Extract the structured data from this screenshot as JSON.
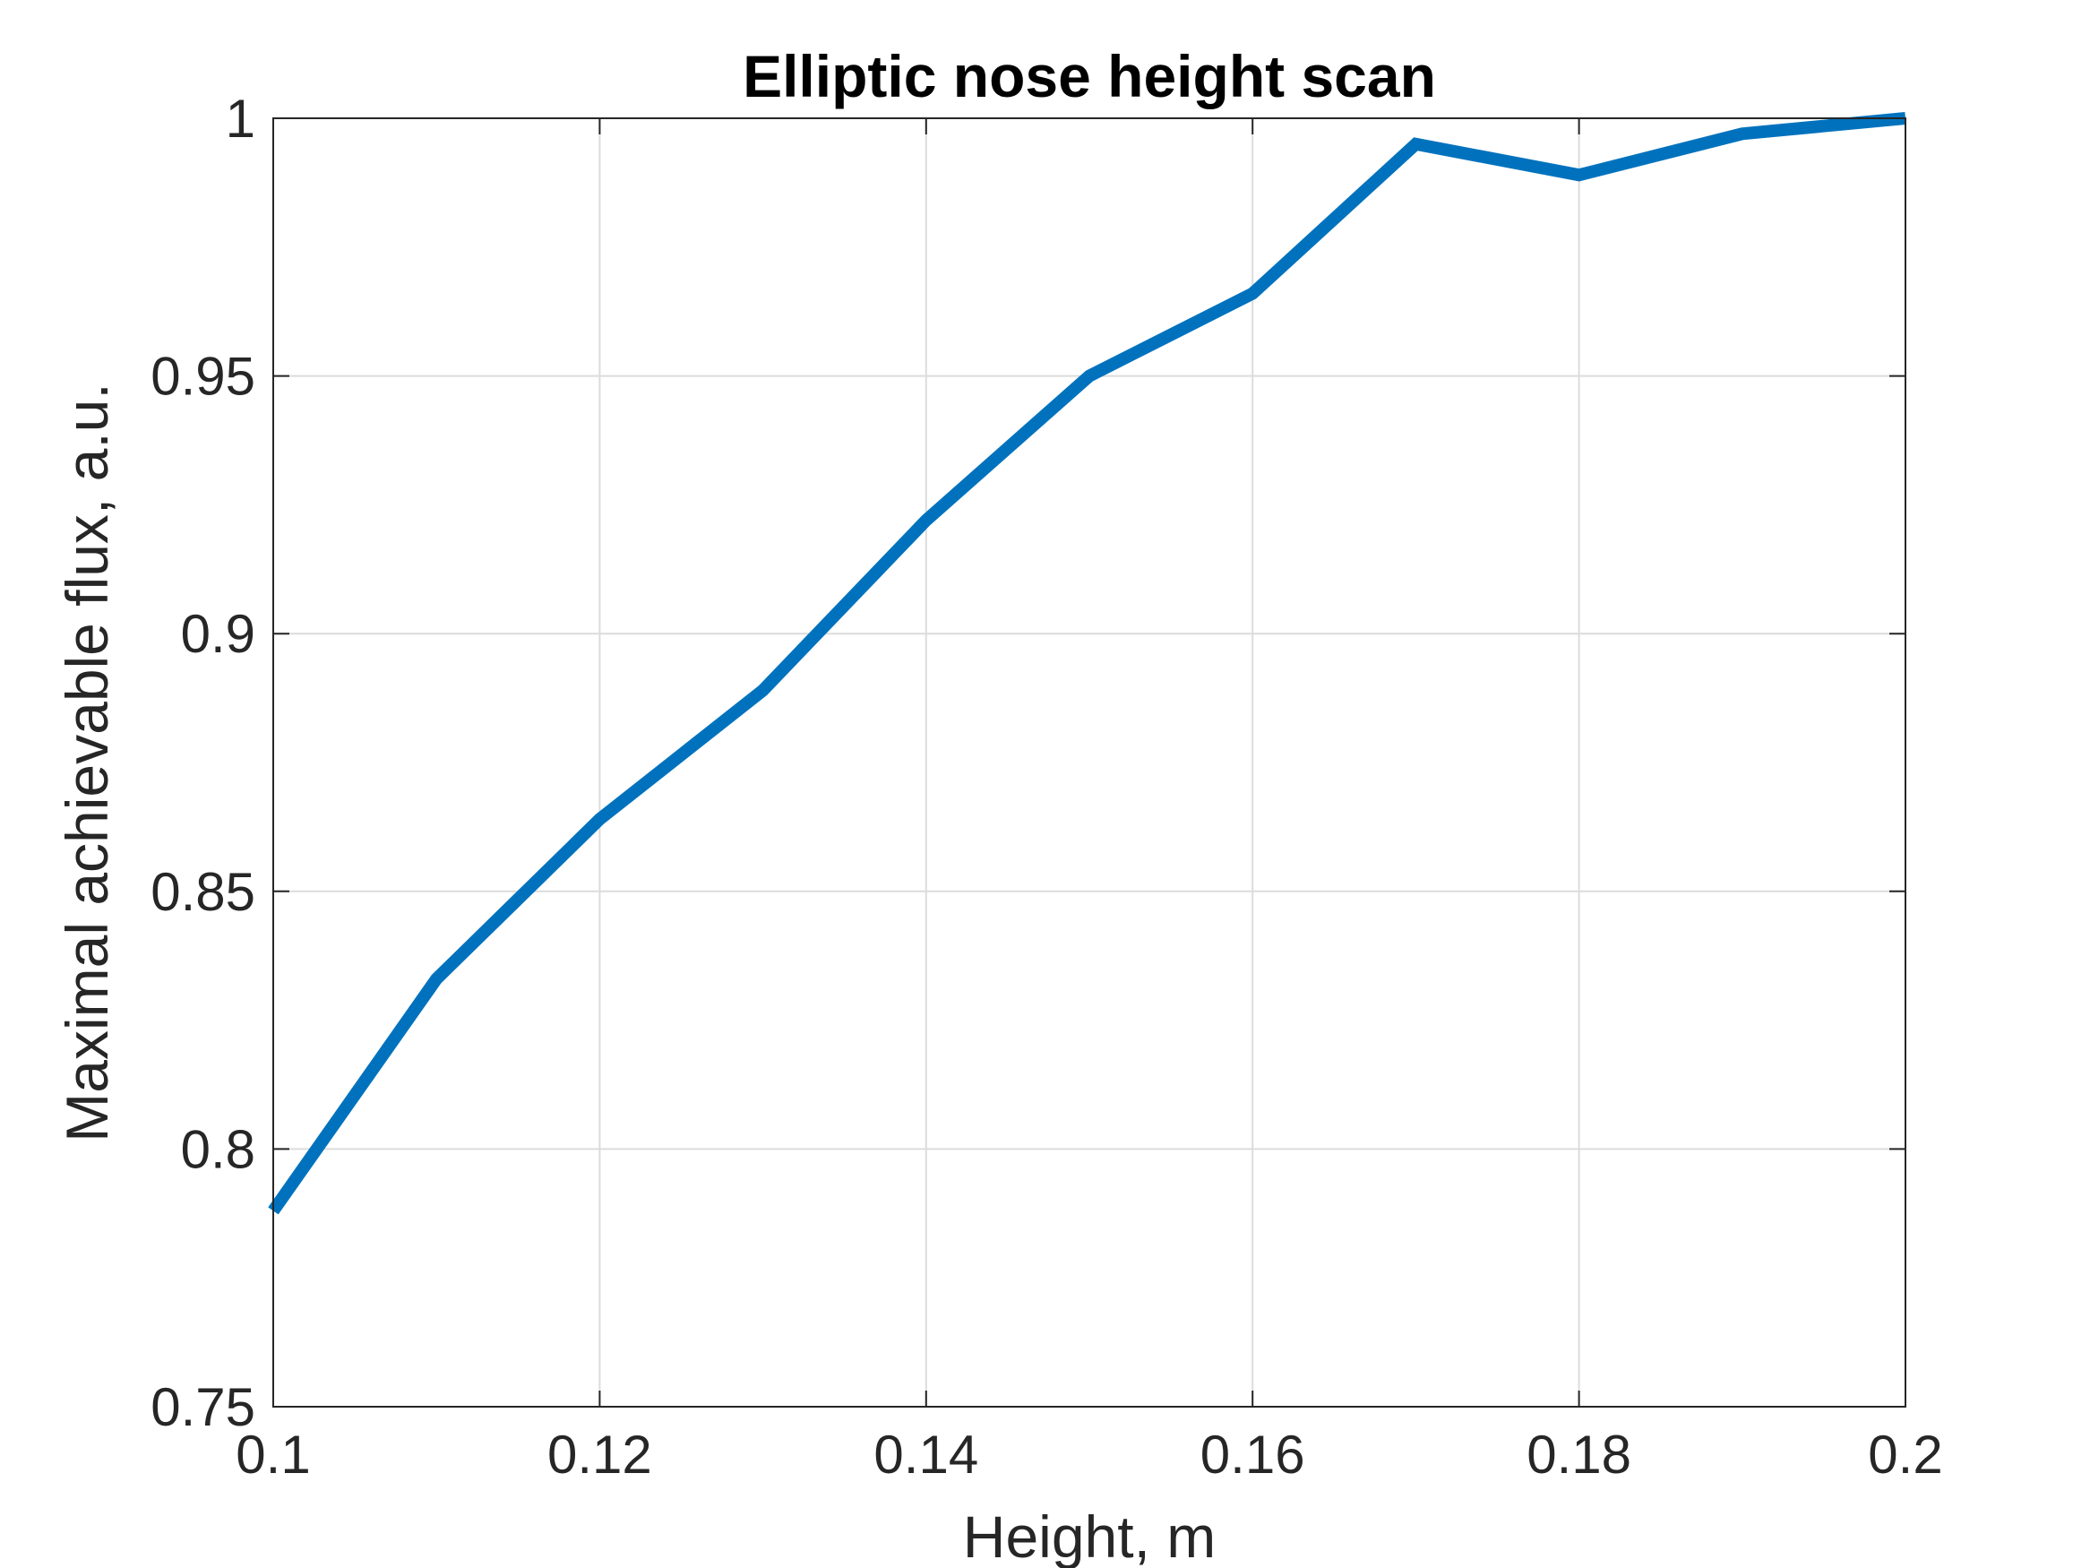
{
  "chart_data": {
    "type": "line",
    "title": "Elliptic nose height scan",
    "xlabel": "Height, m",
    "ylabel": "Maximal achievable flux, a.u.",
    "xlim": [
      0.1,
      0.2
    ],
    "ylim": [
      0.75,
      1
    ],
    "xticks": [
      0.1,
      0.12,
      0.14,
      0.16,
      0.18,
      0.2
    ],
    "xtick_labels": [
      "0.1",
      "0.12",
      "0.14",
      "0.16",
      "0.18",
      "0.2"
    ],
    "yticks": [
      0.75,
      0.8,
      0.85,
      0.9,
      0.95,
      1
    ],
    "ytick_labels": [
      "0.75",
      "0.8",
      "0.85",
      "0.9",
      "0.95",
      "1"
    ],
    "grid": true,
    "series": [
      {
        "color": "#0072BD",
        "x": [
          0.1,
          0.11,
          0.12,
          0.13,
          0.14,
          0.15,
          0.16,
          0.17,
          0.18,
          0.19,
          0.2
        ],
        "y": [
          0.788,
          0.833,
          0.864,
          0.889,
          0.922,
          0.95,
          0.966,
          0.995,
          0.989,
          0.997,
          1.0
        ]
      }
    ]
  }
}
